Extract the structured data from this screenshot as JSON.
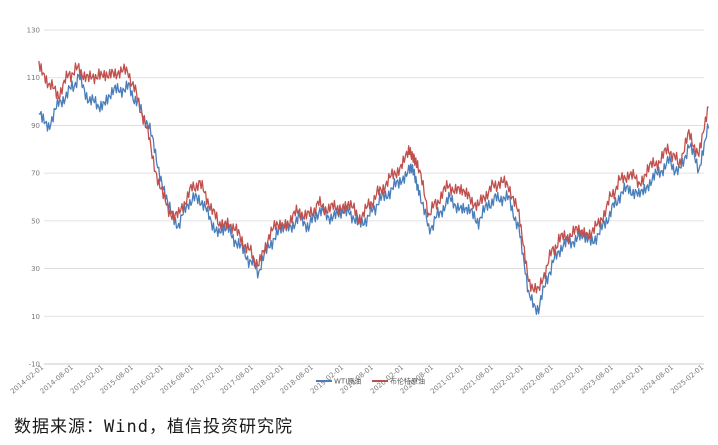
{
  "chart_data": {
    "type": "line",
    "title": "",
    "xlabel": "",
    "ylabel": "",
    "ylim": [
      -10,
      130
    ],
    "yticks": [
      -10,
      10,
      30,
      50,
      70,
      90,
      110,
      130
    ],
    "xticks": [
      "2014-02-01",
      "2014-08-01",
      "2015-02-01",
      "2015-08-01",
      "2016-02-01",
      "2016-08-01",
      "2017-02-01",
      "2017-08-01",
      "2018-02-01",
      "2018-08-01",
      "2019-02-01",
      "2019-08-01",
      "2020-02-01",
      "2020-08-01",
      "2021-02-01",
      "2021-08-01",
      "2022-02-01",
      "2022-08-01",
      "2023-02-01",
      "2023-08-01",
      "2024-02-01",
      "2024-08-01",
      "2025-02-01"
    ],
    "x": [
      "2014-01-01",
      "2014-03-01",
      "2014-05-01",
      "2014-07-01",
      "2014-09-01",
      "2014-11-01",
      "2015-01-01",
      "2015-03-01",
      "2015-05-01",
      "2015-07-01",
      "2015-09-01",
      "2015-11-01",
      "2016-01-01",
      "2016-03-01",
      "2016-05-01",
      "2016-07-01",
      "2016-09-01",
      "2016-11-01",
      "2017-01-01",
      "2017-03-01",
      "2017-05-01",
      "2017-07-01",
      "2017-09-01",
      "2017-11-01",
      "2018-01-01",
      "2018-03-01",
      "2018-05-01",
      "2018-07-01",
      "2018-09-01",
      "2018-11-01",
      "2019-01-01",
      "2019-03-01",
      "2019-05-01",
      "2019-07-01",
      "2019-09-01",
      "2019-11-01",
      "2020-01-01",
      "2020-03-01",
      "2020-04-01",
      "2020-05-01",
      "2020-07-01",
      "2020-09-01",
      "2020-11-01",
      "2021-01-01",
      "2021-03-01",
      "2021-05-01",
      "2021-07-01",
      "2021-09-01",
      "2021-11-01",
      "2022-01-01",
      "2022-03-01",
      "2022-05-01",
      "2022-07-01",
      "2022-09-01",
      "2022-11-01",
      "2023-01-01",
      "2023-03-01",
      "2023-05-01",
      "2023-07-01",
      "2023-09-01",
      "2023-11-01",
      "2024-01-01",
      "2024-03-01",
      "2024-05-01",
      "2024-07-01",
      "2024-09-01",
      "2024-11-01",
      "2025-01-01",
      "2025-03-01"
    ],
    "series": [
      {
        "name": "WTI原油",
        "color": "#4a7ebb",
        "values": [
          96,
          90,
          99,
          104,
          110,
          101,
          98,
          103,
          105,
          106,
          98,
          90,
          72,
          55,
          48,
          58,
          60,
          52,
          44,
          46,
          40,
          34,
          29,
          40,
          45,
          47,
          51,
          48,
          54,
          52,
          52,
          55,
          48,
          52,
          58,
          62,
          66,
          72,
          70,
          64,
          46,
          53,
          59,
          56,
          54,
          50,
          57,
          60,
          59,
          47,
          18,
          13,
          28,
          38,
          41,
          43,
          41,
          44,
          52,
          60,
          64,
          60,
          66,
          70,
          75,
          70,
          82,
          72,
          92
        ]
      },
      {
        "name": "布伦特原油",
        "color": "#c0504d",
        "values": [
          117,
          107,
          103,
          111,
          114,
          109,
          112,
          110,
          113,
          112,
          100,
          85,
          65,
          54,
          52,
          62,
          66,
          58,
          48,
          50,
          44,
          38,
          31,
          44,
          49,
          50,
          54,
          52,
          57,
          55,
          56,
          58,
          51,
          56,
          62,
          67,
          72,
          78,
          78,
          72,
          53,
          59,
          65,
          62,
          60,
          56,
          63,
          66,
          65,
          52,
          25,
          20,
          34,
          42,
          44,
          46,
          45,
          48,
          58,
          66,
          70,
          66,
          72,
          75,
          80,
          74,
          86,
          78,
          97
        ]
      }
    ],
    "legend_position": "bottom",
    "grid": true
  },
  "footer": {
    "source": "数据来源：Wind，植信投资研究院"
  }
}
